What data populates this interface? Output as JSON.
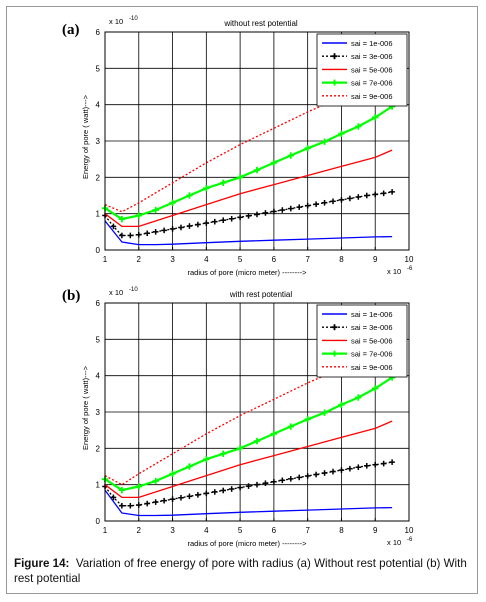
{
  "caption": {
    "label": "Figure 14:",
    "text": "Variation of  free energy of pore with radius  (a) Without rest potential (b) With rest potential"
  },
  "chart_data": [
    {
      "panel": "(a)",
      "type": "line",
      "title": "without rest potential",
      "xlabel": "radius of pore (micro meter) -------->",
      "ylabel": "Energy of pore ( watt)--->",
      "xlim": [
        1,
        10
      ],
      "ylim": [
        0,
        6
      ],
      "x_exponent": "x 10",
      "x_exponent_power": "-6",
      "y_exponent": "x 10",
      "y_exponent_power": "-10",
      "x_ticks": [
        "1",
        "2",
        "3",
        "4",
        "5",
        "6",
        "7",
        "8",
        "9",
        "10"
      ],
      "y_ticks": [
        "0",
        "1",
        "2",
        "3",
        "4",
        "5",
        "6"
      ],
      "grid": true,
      "legend_position": "top-right",
      "series": [
        {
          "name": "sai = 1e-006",
          "color": "#0000ff",
          "style": "solid",
          "marker": "none",
          "x": [
            1.0,
            1.5,
            2.0,
            2.5,
            3.0,
            4.0,
            5.0,
            6.0,
            7.0,
            8.0,
            9.0,
            9.5
          ],
          "y": [
            0.8,
            0.22,
            0.15,
            0.15,
            0.16,
            0.2,
            0.24,
            0.27,
            0.3,
            0.33,
            0.36,
            0.37
          ]
        },
        {
          "name": "sai = 3e-006",
          "color": "#000000",
          "style": "dotted",
          "marker": "plus",
          "x": [
            1.0,
            1.25,
            1.5,
            1.75,
            2.0,
            2.25,
            2.5,
            2.75,
            3.0,
            3.25,
            3.5,
            3.75,
            4.0,
            4.25,
            4.5,
            4.75,
            5.0,
            5.25,
            5.5,
            5.75,
            6.0,
            6.25,
            6.5,
            6.75,
            7.0,
            7.25,
            7.5,
            7.75,
            8.0,
            8.25,
            8.5,
            8.75,
            9.0,
            9.25,
            9.5
          ],
          "y": [
            0.95,
            0.65,
            0.4,
            0.4,
            0.42,
            0.46,
            0.5,
            0.54,
            0.58,
            0.62,
            0.66,
            0.7,
            0.74,
            0.78,
            0.82,
            0.86,
            0.9,
            0.94,
            0.98,
            1.02,
            1.06,
            1.1,
            1.14,
            1.18,
            1.22,
            1.26,
            1.3,
            1.34,
            1.38,
            1.42,
            1.46,
            1.5,
            1.53,
            1.56,
            1.6
          ]
        },
        {
          "name": "sai = 5e-006",
          "color": "#ff0000",
          "style": "solid",
          "marker": "none",
          "x": [
            1.0,
            1.5,
            2.0,
            3.0,
            4.0,
            5.0,
            6.0,
            7.0,
            8.0,
            9.0,
            9.5
          ],
          "y": [
            1.0,
            0.65,
            0.65,
            0.95,
            1.25,
            1.55,
            1.8,
            2.05,
            2.3,
            2.55,
            2.75
          ]
        },
        {
          "name": "sai = 7e-006",
          "color": "#00ff00",
          "style": "solid",
          "marker": "plus",
          "x": [
            1.0,
            1.5,
            2.0,
            2.5,
            3.0,
            3.5,
            4.0,
            4.5,
            5.0,
            5.5,
            6.0,
            6.5,
            7.0,
            7.5,
            8.0,
            8.5,
            9.0,
            9.5
          ],
          "y": [
            1.15,
            0.85,
            0.95,
            1.1,
            1.3,
            1.5,
            1.7,
            1.85,
            2.0,
            2.2,
            2.4,
            2.6,
            2.8,
            2.98,
            3.2,
            3.4,
            3.65,
            3.95
          ]
        },
        {
          "name": "sai = 9e-006",
          "color": "#ff0000",
          "style": "dotted",
          "marker": "none",
          "x": [
            1.0,
            1.5,
            2.0,
            3.0,
            4.0,
            5.0,
            6.0,
            7.0,
            8.0,
            8.5
          ],
          "y": [
            1.25,
            1.05,
            1.3,
            1.85,
            2.4,
            2.9,
            3.35,
            3.8,
            4.2,
            4.4
          ]
        }
      ]
    },
    {
      "panel": "(b)",
      "type": "line",
      "title": "with rest potential",
      "xlabel": "radius of pore (micro meter) -------->",
      "ylabel": "Energy of pore ( watt)--->",
      "xlim": [
        1,
        10
      ],
      "ylim": [
        0,
        6
      ],
      "x_exponent": "x 10",
      "x_exponent_power": "-6",
      "y_exponent": "x 10",
      "y_exponent_power": "-10",
      "x_ticks": [
        "1",
        "2",
        "3",
        "4",
        "5",
        "6",
        "7",
        "8",
        "9",
        "10"
      ],
      "y_ticks": [
        "0",
        "1",
        "2",
        "3",
        "4",
        "5",
        "6"
      ],
      "grid": true,
      "legend_position": "top-right",
      "series": [
        {
          "name": "sai = 1e-006",
          "color": "#0000ff",
          "style": "solid",
          "marker": "none",
          "x": [
            1.0,
            1.5,
            2.0,
            2.5,
            3.0,
            4.0,
            5.0,
            6.0,
            7.0,
            8.0,
            9.0,
            9.5
          ],
          "y": [
            0.85,
            0.22,
            0.15,
            0.15,
            0.16,
            0.2,
            0.24,
            0.27,
            0.3,
            0.33,
            0.36,
            0.37
          ]
        },
        {
          "name": "sai = 3e-006",
          "color": "#000000",
          "style": "dotted",
          "marker": "plus",
          "x": [
            1.0,
            1.25,
            1.5,
            1.75,
            2.0,
            2.25,
            2.5,
            2.75,
            3.0,
            3.25,
            3.5,
            3.75,
            4.0,
            4.25,
            4.5,
            4.75,
            5.0,
            5.25,
            5.5,
            5.75,
            6.0,
            6.25,
            6.5,
            6.75,
            7.0,
            7.25,
            7.5,
            7.75,
            8.0,
            8.25,
            8.5,
            8.75,
            9.0,
            9.25,
            9.5
          ],
          "y": [
            0.95,
            0.65,
            0.42,
            0.42,
            0.44,
            0.48,
            0.52,
            0.56,
            0.6,
            0.64,
            0.68,
            0.72,
            0.76,
            0.8,
            0.84,
            0.88,
            0.92,
            0.96,
            1.0,
            1.04,
            1.08,
            1.12,
            1.16,
            1.2,
            1.24,
            1.28,
            1.32,
            1.36,
            1.4,
            1.44,
            1.48,
            1.52,
            1.55,
            1.58,
            1.62
          ]
        },
        {
          "name": "sai = 5e-006",
          "color": "#ff0000",
          "style": "solid",
          "marker": "none",
          "x": [
            1.0,
            1.5,
            2.0,
            3.0,
            4.0,
            5.0,
            6.0,
            7.0,
            8.0,
            9.0,
            9.5
          ],
          "y": [
            1.0,
            0.65,
            0.65,
            0.95,
            1.25,
            1.55,
            1.8,
            2.05,
            2.3,
            2.55,
            2.75
          ]
        },
        {
          "name": "sai = 7e-006",
          "color": "#00ff00",
          "style": "solid",
          "marker": "plus",
          "x": [
            1.0,
            1.5,
            2.0,
            2.5,
            3.0,
            3.5,
            4.0,
            4.5,
            5.0,
            5.5,
            6.0,
            6.5,
            7.0,
            7.5,
            8.0,
            8.5,
            9.0,
            9.5
          ],
          "y": [
            1.15,
            0.85,
            0.95,
            1.1,
            1.3,
            1.5,
            1.7,
            1.85,
            2.0,
            2.2,
            2.4,
            2.6,
            2.8,
            2.98,
            3.2,
            3.4,
            3.65,
            3.95
          ]
        },
        {
          "name": "sai = 9e-006",
          "color": "#ff0000",
          "style": "dotted",
          "marker": "none",
          "x": [
            1.0,
            1.5,
            2.0,
            3.0,
            4.0,
            5.0,
            6.0,
            7.0,
            8.0,
            8.5
          ],
          "y": [
            1.25,
            1.0,
            1.3,
            1.85,
            2.4,
            2.9,
            3.35,
            3.8,
            4.2,
            4.4
          ]
        }
      ]
    }
  ]
}
